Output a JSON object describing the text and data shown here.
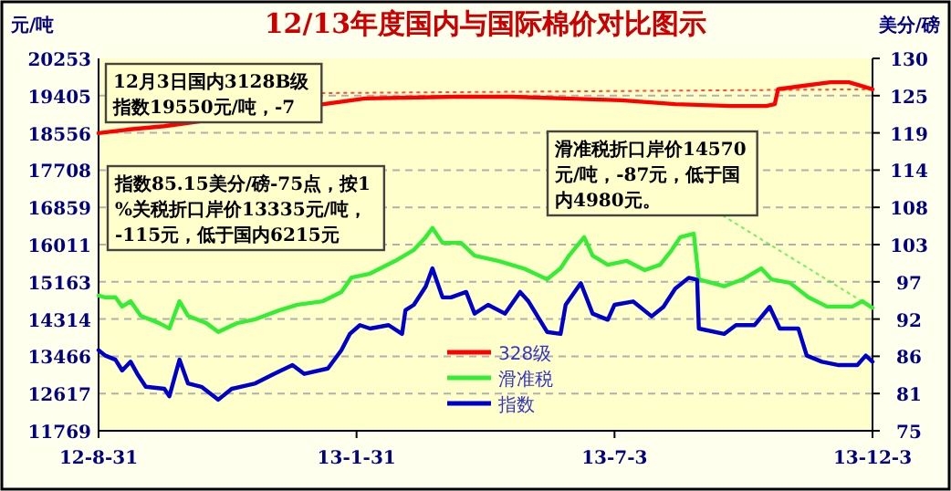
{
  "chart_data": {
    "type": "line",
    "title": "12/13年度国内与国际棉价对比图示",
    "ylabel": "元/吨",
    "y2label": "美分/磅",
    "xlim": [
      "2012-08-31",
      "2013-12-03"
    ],
    "xticks": [
      {
        "value": "2012-08-31",
        "label": "12-8-31"
      },
      {
        "value": "2013-01-31",
        "label": "13-1-31"
      },
      {
        "value": "2013-07-03",
        "label": "13-7-3"
      },
      {
        "value": "2013-12-03",
        "label": "13-12-3"
      }
    ],
    "ylim": [
      11769,
      20253
    ],
    "yticks": [
      11769,
      12617,
      13466,
      14314,
      15163,
      16011,
      16859,
      17708,
      18556,
      19405,
      20253
    ],
    "y2lim": [
      75,
      130
    ],
    "y2ticks": [
      75,
      {
        "value": 80.5,
        "label": "81"
      },
      86,
      {
        "value": 91.5,
        "label": "92"
      },
      97,
      {
        "value": 102.5,
        "label": "103"
      },
      108,
      {
        "value": 113.5,
        "label": "114"
      },
      119,
      {
        "value": 124.5,
        "label": "125"
      },
      130
    ],
    "grid": "y",
    "legend": "bottom",
    "series": [
      {
        "name": "328级",
        "color": "#ff0000",
        "x": [
          "2012-08-31",
          "2012-09-17",
          "2012-10-09",
          "2013-02-05",
          "2013-03-31",
          "2013-05-03",
          "2013-06-04",
          "2013-07-07",
          "2013-08-08",
          "2013-09-10",
          "2013-10-01",
          "2013-10-06",
          "2013-10-08",
          "2013-10-23",
          "2013-11-08",
          "2013-11-19",
          "2013-11-26",
          "2013-12-03"
        ],
        "values": [
          18550,
          18630,
          18710,
          19340,
          19380,
          19380,
          19340,
          19300,
          19210,
          19170,
          19170,
          19210,
          19550,
          19630,
          19710,
          19710,
          19630,
          19550
        ]
      },
      {
        "name": "滑准税",
        "color": "#33ee33",
        "x": [
          "2012-08-31",
          "2012-09-04",
          "2012-09-10",
          "2012-09-14",
          "2012-09-19",
          "2012-09-25",
          "2012-10-06",
          "2012-10-12",
          "2012-10-18",
          "2012-10-23",
          "2012-11-03",
          "2012-11-10",
          "2012-11-21",
          "2012-12-02",
          "2012-12-16",
          "2012-12-27",
          "2013-01-11",
          "2013-01-22",
          "2013-01-28",
          "2013-02-08",
          "2013-02-23",
          "2013-03-06",
          "2013-03-13",
          "2013-03-17",
          "2013-03-23",
          "2013-04-03",
          "2013-04-11",
          "2013-04-25",
          "2013-05-10",
          "2013-05-24",
          "2013-06-01",
          "2013-06-06",
          "2013-06-15",
          "2013-06-20",
          "2013-06-29",
          "2013-07-10",
          "2013-07-21",
          "2013-07-30",
          "2013-08-06",
          "2013-08-11",
          "2013-08-19",
          "2013-08-22",
          "2013-09-06",
          "2013-09-17",
          "2013-09-28",
          "2013-10-04",
          "2013-10-15",
          "2013-10-26",
          "2013-11-06",
          "2013-11-21",
          "2013-11-27",
          "2013-12-03"
        ],
        "values": [
          14850,
          14810,
          14810,
          14600,
          14720,
          14390,
          14220,
          14100,
          14720,
          14390,
          14220,
          14020,
          14220,
          14310,
          14510,
          14640,
          14720,
          14930,
          15260,
          15350,
          15640,
          15890,
          16180,
          16390,
          16050,
          16050,
          15760,
          15640,
          15470,
          15220,
          15470,
          15760,
          16180,
          15760,
          15550,
          15640,
          15430,
          15550,
          15890,
          16180,
          16260,
          15220,
          15060,
          15220,
          15470,
          15220,
          15140,
          14810,
          14600,
          14600,
          14720,
          14570
        ]
      },
      {
        "name": "指数",
        "color": "#0000cc",
        "axis": "y2",
        "x": [
          "2012-08-31",
          "2012-09-04",
          "2012-09-10",
          "2012-09-14",
          "2012-09-19",
          "2012-09-23",
          "2012-09-28",
          "2012-10-09",
          "2012-10-12",
          "2012-10-18",
          "2012-10-23",
          "2012-10-31",
          "2012-11-10",
          "2012-11-18",
          "2012-12-02",
          "2012-12-13",
          "2012-12-24",
          "2012-12-31",
          "2013-01-14",
          "2013-01-22",
          "2013-01-27",
          "2013-02-02",
          "2013-02-08",
          "2013-02-19",
          "2013-02-27",
          "2013-03-01",
          "2013-03-06",
          "2013-03-13",
          "2013-03-17",
          "2013-03-23",
          "2013-03-28",
          "2013-04-06",
          "2013-04-11",
          "2013-04-19",
          "2013-04-29",
          "2013-05-08",
          "2013-05-13",
          "2013-05-24",
          "2013-06-01",
          "2013-06-04",
          "2013-06-13",
          "2013-06-20",
          "2013-06-29",
          "2013-07-03",
          "2013-07-14",
          "2013-07-25",
          "2013-08-01",
          "2013-08-08",
          "2013-08-16",
          "2013-08-21",
          "2013-08-22",
          "2013-09-06",
          "2013-09-13",
          "2013-09-24",
          "2013-10-03",
          "2013-10-09",
          "2013-10-20",
          "2013-10-25",
          "2013-11-03",
          "2013-11-13",
          "2013-11-24",
          "2013-11-29",
          "2013-12-03"
        ],
        "values": [
          86.9,
          86.1,
          85.5,
          83.9,
          85.2,
          83.4,
          81.5,
          81.2,
          80.1,
          85.5,
          82.0,
          81.5,
          79.6,
          81.2,
          82.0,
          83.4,
          84.7,
          83.4,
          84.2,
          86.9,
          89.3,
          90.6,
          90.1,
          90.6,
          89.3,
          92.8,
          93.6,
          96.3,
          99.0,
          94.7,
          94.7,
          95.5,
          92.3,
          93.6,
          92.3,
          95.5,
          94.1,
          89.6,
          89.3,
          93.6,
          96.8,
          92.3,
          91.4,
          93.6,
          94.1,
          91.9,
          93.3,
          96.0,
          97.6,
          97.3,
          90.1,
          89.3,
          90.6,
          90.6,
          93.3,
          90.1,
          90.1,
          86.1,
          85.2,
          84.7,
          84.7,
          86.1,
          85.2
        ]
      }
    ],
    "annotations": [
      {
        "text": "12月3日国内3128B级指数19550元/吨，-7",
        "x": "2013-12-03",
        "y": 19550
      },
      {
        "text": "滑准税折口岸价14570元/吨，-87元，低于国内4980元。",
        "x": "2013-12-03",
        "y": 14570
      },
      "指数85.15美分/磅-75点，按1%关税折口岸价13335元/吨， -115元，低于国内6215元"
    ]
  }
}
